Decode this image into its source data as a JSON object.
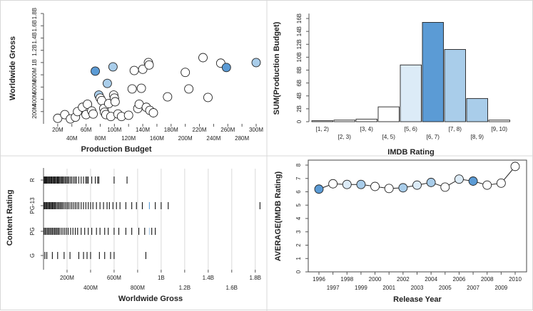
{
  "colors": {
    "highlight": "#5b9bd5",
    "mid": "#a9cdea",
    "light": "#dcebf7",
    "white": "#ffffff",
    "stroke": "#222222",
    "grid": "#d9d9d9"
  },
  "chart_data": [
    {
      "type": "scatter",
      "title": "",
      "xlabel": "Production Budget",
      "ylabel": "Worldwide Gross",
      "xlim": [
        0,
        300000000
      ],
      "ylim": [
        0,
        1800000000
      ],
      "x_ticks_top": [
        "20M",
        "60M",
        "100M",
        "140M",
        "180M",
        "220M",
        "260M",
        "300M"
      ],
      "x_ticks_bottom": [
        "40M",
        "80M",
        "120M",
        "160M",
        "200M",
        "240M",
        "280M"
      ],
      "y_ticks": [
        "200M",
        "400M",
        "600M",
        "800M",
        "1B",
        "1.2B",
        "1.4B",
        "1.6B",
        "1.8B"
      ],
      "points": [
        {
          "x": 20,
          "y": 90,
          "c": "white"
        },
        {
          "x": 30,
          "y": 150,
          "c": "white"
        },
        {
          "x": 38,
          "y": 80,
          "c": "white"
        },
        {
          "x": 45,
          "y": 110,
          "c": "white"
        },
        {
          "x": 48,
          "y": 200,
          "c": "white"
        },
        {
          "x": 55,
          "y": 270,
          "c": "white"
        },
        {
          "x": 60,
          "y": 150,
          "c": "white"
        },
        {
          "x": 62,
          "y": 320,
          "c": "white"
        },
        {
          "x": 68,
          "y": 210,
          "c": "white"
        },
        {
          "x": 70,
          "y": 160,
          "c": "white"
        },
        {
          "x": 73,
          "y": 860,
          "c": "highlight"
        },
        {
          "x": 78,
          "y": 470,
          "c": "mid"
        },
        {
          "x": 80,
          "y": 420,
          "c": "white"
        },
        {
          "x": 82,
          "y": 380,
          "c": "white"
        },
        {
          "x": 85,
          "y": 250,
          "c": "white"
        },
        {
          "x": 86,
          "y": 190,
          "c": "white"
        },
        {
          "x": 88,
          "y": 150,
          "c": "white"
        },
        {
          "x": 90,
          "y": 660,
          "c": "mid"
        },
        {
          "x": 92,
          "y": 330,
          "c": "white"
        },
        {
          "x": 95,
          "y": 120,
          "c": "white"
        },
        {
          "x": 98,
          "y": 930,
          "c": "mid"
        },
        {
          "x": 99,
          "y": 470,
          "c": "white"
        },
        {
          "x": 100,
          "y": 420,
          "c": "white"
        },
        {
          "x": 101,
          "y": 360,
          "c": "white"
        },
        {
          "x": 105,
          "y": 160,
          "c": "white"
        },
        {
          "x": 110,
          "y": 120,
          "c": "white"
        },
        {
          "x": 120,
          "y": 140,
          "c": "white"
        },
        {
          "x": 125,
          "y": 570,
          "c": "white"
        },
        {
          "x": 128,
          "y": 870,
          "c": "white"
        },
        {
          "x": 133,
          "y": 250,
          "c": "white"
        },
        {
          "x": 135,
          "y": 320,
          "c": "white"
        },
        {
          "x": 138,
          "y": 580,
          "c": "white"
        },
        {
          "x": 140,
          "y": 890,
          "c": "white"
        },
        {
          "x": 145,
          "y": 270,
          "c": "white"
        },
        {
          "x": 148,
          "y": 1000,
          "c": "white"
        },
        {
          "x": 149,
          "y": 960,
          "c": "white"
        },
        {
          "x": 150,
          "y": 220,
          "c": "white"
        },
        {
          "x": 155,
          "y": 180,
          "c": "white"
        },
        {
          "x": 175,
          "y": 440,
          "c": "white"
        },
        {
          "x": 200,
          "y": 840,
          "c": "white"
        },
        {
          "x": 205,
          "y": 570,
          "c": "white"
        },
        {
          "x": 225,
          "y": 1080,
          "c": "white"
        },
        {
          "x": 232,
          "y": 430,
          "c": "white"
        },
        {
          "x": 250,
          "y": 990,
          "c": "white"
        },
        {
          "x": 258,
          "y": 920,
          "c": "highlight"
        },
        {
          "x": 300,
          "y": 1000,
          "c": "mid"
        }
      ]
    },
    {
      "type": "bar",
      "title": "",
      "xlabel": "IMDB Rating",
      "ylabel": "SUM(Production Budget)",
      "categories": [
        "[1, 2)",
        "[2, 3)",
        "[3, 4)",
        "[4, 5)",
        "[5, 6)",
        "[6, 7)",
        "[7, 8)",
        "[8, 9)",
        "[9, 10)"
      ],
      "values": [
        0.15,
        0.25,
        0.4,
        2.3,
        8.8,
        15.4,
        11.2,
        3.6,
        0.25
      ],
      "colors": [
        "white",
        "white",
        "white",
        "white",
        "light",
        "highlight",
        "mid",
        "mid",
        "white"
      ],
      "ylim": [
        0,
        16
      ],
      "y_ticks": [
        "0",
        "2B",
        "4B",
        "6B",
        "8B",
        "10B",
        "12B",
        "14B",
        "16B"
      ]
    },
    {
      "type": "strip",
      "title": "",
      "xlabel": "Worldwide Gross",
      "ylabel": "Content Rating",
      "categories": [
        "R",
        "PG-13",
        "PG",
        "G"
      ],
      "xlim": [
        0,
        1850
      ],
      "x_ticks_top": [
        "200M",
        "600M",
        "1B",
        "1.4B",
        "1.8B"
      ],
      "x_ticks_bottom": [
        "400M",
        "800M",
        "1.2B",
        "1.6B"
      ],
      "series": [
        {
          "name": "R",
          "values": [
            5,
            12,
            18,
            25,
            30,
            38,
            44,
            52,
            60,
            66,
            72,
            80,
            88,
            95,
            102,
            110,
            118,
            125,
            132,
            140,
            150,
            158,
            165,
            175,
            185,
            195,
            205,
            215,
            228,
            240,
            255,
            268,
            280,
            300,
            320,
            340,
            360,
            370,
            380,
            410,
            440,
            460,
            470,
            600,
            710
          ]
        },
        {
          "name": "PG-13",
          "values": [
            5,
            12,
            20,
            28,
            36,
            44,
            52,
            60,
            68,
            76,
            84,
            92,
            100,
            110,
            120,
            130,
            140,
            150,
            160,
            172,
            185,
            198,
            210,
            225,
            240,
            255,
            270,
            285,
            300,
            320,
            340,
            360,
            380,
            400,
            420,
            450,
            480,
            510,
            540,
            560,
            590,
            620,
            650,
            700,
            750,
            790,
            840,
            900,
            950,
            1000,
            1060,
            1840
          ]
        },
        {
          "name": "PG",
          "values": [
            5,
            15,
            25,
            35,
            45,
            55,
            65,
            75,
            85,
            95,
            105,
            115,
            125,
            135,
            150,
            165,
            180,
            195,
            210,
            230,
            250,
            270,
            290,
            320,
            350,
            380,
            410,
            450,
            480,
            520,
            550,
            600,
            640,
            700,
            750,
            810,
            860,
            900,
            920,
            950
          ]
        },
        {
          "name": "G",
          "values": [
            12,
            28,
            75,
            120,
            175,
            225,
            300,
            340,
            370,
            400,
            475,
            520,
            570,
            600,
            870
          ]
        }
      ]
    },
    {
      "type": "line",
      "title": "",
      "xlabel": "Release Year",
      "ylabel": "AVERAGE(IMDB Rating)",
      "x": [
        1996,
        1997,
        1998,
        1999,
        2000,
        2001,
        2002,
        2003,
        2004,
        2005,
        2006,
        2007,
        2008,
        2009,
        2010
      ],
      "values": [
        6.2,
        6.6,
        6.55,
        6.55,
        6.4,
        6.25,
        6.3,
        6.5,
        6.7,
        6.35,
        6.95,
        6.8,
        6.5,
        6.65,
        7.9
      ],
      "colors": [
        "highlight",
        "white",
        "light",
        "mid",
        "white",
        "white",
        "mid",
        "light",
        "mid",
        "white",
        "light",
        "highlight",
        "white",
        "white",
        "white"
      ],
      "ylim": [
        0,
        8
      ],
      "y_ticks": [
        "0",
        "1",
        "2",
        "3",
        "4",
        "5",
        "6",
        "7",
        "8"
      ],
      "x_ticks_top": [
        "1996",
        "1998",
        "2000",
        "2002",
        "2004",
        "2006",
        "2008",
        "2010"
      ],
      "x_ticks_bottom": [
        "1997",
        "1999",
        "2001",
        "2003",
        "2005",
        "2007",
        "2009"
      ]
    }
  ]
}
